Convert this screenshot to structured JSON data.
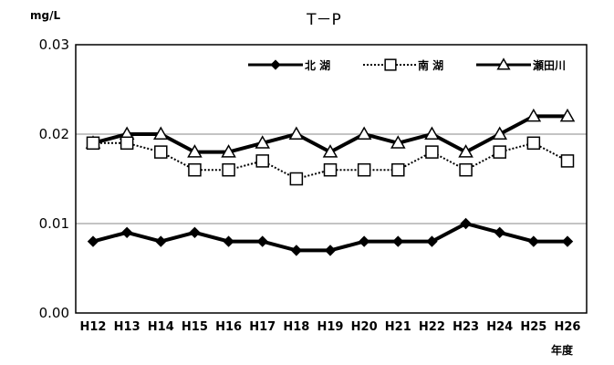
{
  "chart_data": {
    "type": "line",
    "title": "T－P",
    "ylabel": "mg/L",
    "xlabel": "年度",
    "ylim": [
      0,
      0.03
    ],
    "yticks": [
      "0.00",
      "0.01",
      "0.02",
      "0.03"
    ],
    "ytick_values": [
      0,
      0.01,
      0.02,
      0.03
    ],
    "gridlines": [
      0.01,
      0.02
    ],
    "legend_position": "top-right",
    "categories": [
      "H12",
      "H13",
      "H14",
      "H15",
      "H16",
      "H17",
      "H18",
      "H19",
      "H20",
      "H21",
      "H22",
      "H23",
      "H24",
      "H25",
      "H26"
    ],
    "series": [
      {
        "name": "北 湖",
        "marker": "diamond",
        "line": "solid-thick",
        "color": "#000000",
        "values": [
          0.008,
          0.009,
          0.008,
          0.009,
          0.008,
          0.008,
          0.007,
          0.007,
          0.008,
          0.008,
          0.008,
          0.01,
          0.009,
          0.008,
          0.008
        ]
      },
      {
        "name": "南 湖",
        "marker": "square",
        "line": "dotted",
        "color": "#000000",
        "values": [
          0.019,
          0.019,
          0.018,
          0.016,
          0.016,
          0.017,
          0.015,
          0.016,
          0.016,
          0.016,
          0.018,
          0.016,
          0.018,
          0.019,
          0.017
        ]
      },
      {
        "name": "瀬田川",
        "marker": "triangle",
        "line": "solid-thick",
        "color": "#000000",
        "values": [
          0.019,
          0.02,
          0.02,
          0.018,
          0.018,
          0.019,
          0.02,
          0.018,
          0.02,
          0.019,
          0.02,
          0.018,
          0.02,
          0.022,
          0.022
        ]
      }
    ]
  }
}
